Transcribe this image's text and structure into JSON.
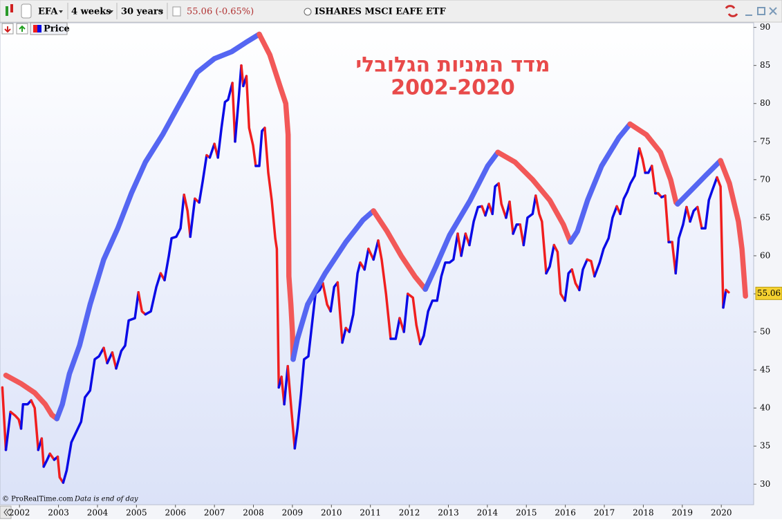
{
  "chart_data": {
    "type": "line",
    "symbol": "EFA",
    "interval": "4 weeks",
    "period": "30 years",
    "quote": "55.06 (-0.65%)",
    "title": "ISHARES MSCI EAFE ETF",
    "annotation": [
      "מדד המניות הגלובלי",
      "2002-2020"
    ],
    "credit": "© ProRealTime.com",
    "note": "Data is end of day",
    "last_value": 55.06,
    "xlim": [
      2001.5,
      2020.83
    ],
    "xticks": [
      2002,
      2003,
      2004,
      2005,
      2006,
      2007,
      2008,
      2009,
      2010,
      2011,
      2012,
      2013,
      2014,
      2015,
      2016,
      2017,
      2018,
      2019,
      2020
    ],
    "ylim": [
      27.3,
      90.6
    ],
    "yticks": [
      30,
      35,
      40,
      45,
      50,
      55,
      60,
      65,
      70,
      75,
      80,
      85,
      90
    ],
    "series": [
      {
        "name": "Price",
        "up_color": "#0a0ae6",
        "down_color": "#f01e1e",
        "x": [
          2001.56,
          2001.65,
          2001.77,
          2001.89,
          2001.98,
          2002.04,
          2002.09,
          2002.21,
          2002.3,
          2002.39,
          2002.48,
          2002.57,
          2002.62,
          2002.71,
          2002.78,
          2002.89,
          2002.98,
          2003.03,
          2003.12,
          2003.21,
          2003.33,
          2003.45,
          2003.58,
          2003.68,
          2003.81,
          2003.93,
          2004.04,
          2004.16,
          2004.25,
          2004.38,
          2004.48,
          2004.61,
          2004.71,
          2004.8,
          2004.96,
          2005.05,
          2005.14,
          2005.23,
          2005.37,
          2005.51,
          2005.62,
          2005.72,
          2005.83,
          2005.9,
          2006.02,
          2006.13,
          2006.22,
          2006.31,
          2006.38,
          2006.5,
          2006.61,
          2006.7,
          2006.8,
          2006.88,
          2007.0,
          2007.09,
          2007.18,
          2007.27,
          2007.35,
          2007.46,
          2007.53,
          2007.62,
          2007.69,
          2007.74,
          2007.82,
          2007.89,
          2007.99,
          2008.06,
          2008.15,
          2008.22,
          2008.29,
          2008.38,
          2008.47,
          2008.56,
          2008.6,
          2008.65,
          2008.72,
          2008.79,
          2008.88,
          2008.97,
          2009.06,
          2009.13,
          2009.22,
          2009.3,
          2009.41,
          2009.48,
          2009.59,
          2009.7,
          2009.78,
          2009.89,
          2009.98,
          2010.07,
          2010.16,
          2010.28,
          2010.37,
          2010.46,
          2010.56,
          2010.67,
          2010.74,
          2010.85,
          2010.95,
          2011.08,
          2011.2,
          2011.29,
          2011.4,
          2011.52,
          2011.65,
          2011.75,
          2011.86,
          2011.96,
          2012.09,
          2012.18,
          2012.28,
          2012.37,
          2012.48,
          2012.59,
          2012.71,
          2012.82,
          2012.92,
          2013.03,
          2013.13,
          2013.24,
          2013.33,
          2013.44,
          2013.54,
          2013.65,
          2013.76,
          2013.86,
          2013.95,
          2014.04,
          2014.13,
          2014.2,
          2014.29,
          2014.36,
          2014.48,
          2014.57,
          2014.66,
          2014.75,
          2014.84,
          2014.93,
          2015.03,
          2015.16,
          2015.24,
          2015.33,
          2015.4,
          2015.51,
          2015.6,
          2015.71,
          2015.8,
          2015.88,
          2015.99,
          2016.08,
          2016.17,
          2016.26,
          2016.36,
          2016.45,
          2016.56,
          2016.66,
          2016.75,
          2016.88,
          2016.98,
          2017.11,
          2017.21,
          2017.32,
          2017.41,
          2017.5,
          2017.59,
          2017.67,
          2017.78,
          2017.9,
          2017.98,
          2018.05,
          2018.13,
          2018.22,
          2018.31,
          2018.38,
          2018.47,
          2018.56,
          2018.65,
          2018.74,
          2018.83,
          2018.91,
          2019.02,
          2019.11,
          2019.2,
          2019.29,
          2019.39,
          2019.5,
          2019.59,
          2019.68,
          2019.77,
          2019.89,
          2019.98,
          2020.05,
          2020.12,
          2020.19
        ],
        "values": [
          42.7,
          34.5,
          39.5,
          39,
          38.5,
          37.3,
          40.5,
          40.5,
          41,
          40,
          34.5,
          36,
          32.3,
          33.2,
          34,
          33.2,
          33.6,
          30.9,
          30.2,
          31.8,
          35.5,
          36.8,
          38.2,
          41.4,
          42.3,
          46.4,
          46.8,
          47.9,
          45.9,
          47.3,
          45.2,
          47.5,
          48.2,
          51.5,
          51.8,
          55.2,
          52.7,
          52.3,
          52.7,
          55.9,
          57.7,
          56.8,
          60,
          62.3,
          62.5,
          63.6,
          68,
          65.9,
          62.5,
          67.5,
          67,
          69.8,
          73.2,
          72.9,
          74.7,
          72.9,
          76.8,
          80.2,
          80.5,
          82.7,
          75,
          80.5,
          85,
          82.3,
          83.6,
          76.8,
          74.5,
          71.8,
          71.8,
          76.4,
          76.8,
          70.9,
          67.3,
          62.3,
          60.9,
          42.7,
          44.1,
          40.5,
          45.5,
          40,
          34.7,
          37.3,
          41.8,
          46.4,
          46.8,
          50,
          55,
          55.5,
          56.4,
          53.6,
          52.7,
          55.9,
          56.5,
          48.6,
          50.5,
          50,
          52.3,
          57.7,
          59.1,
          58.2,
          60.9,
          59.5,
          62,
          59.5,
          55,
          49.1,
          49.1,
          51.8,
          50,
          55,
          54.5,
          50.9,
          48.4,
          49.5,
          52.7,
          54.1,
          54.1,
          57.3,
          59.1,
          59.1,
          59.5,
          62.9,
          60,
          62.9,
          61.4,
          64.5,
          66.4,
          66.5,
          65.3,
          66.8,
          65.5,
          69.1,
          69.5,
          66.8,
          65,
          67.1,
          62.9,
          64.1,
          64.1,
          61.4,
          65,
          65.5,
          67.9,
          65.5,
          64.5,
          57.7,
          58.6,
          61.4,
          60.5,
          55,
          54.1,
          57.7,
          58.2,
          56.4,
          55.5,
          58.2,
          59.5,
          59.3,
          57.3,
          59.1,
          60.9,
          62.3,
          65,
          66.5,
          65.5,
          67.5,
          68.4,
          69.5,
          70.5,
          74.1,
          72.7,
          70.9,
          70.9,
          71.8,
          68.2,
          68.2,
          67.7,
          67.9,
          61.8,
          61.8,
          57.7,
          62.3,
          64.1,
          66.4,
          64.5,
          65.9,
          66.4,
          63.6,
          63.6,
          67.3,
          68.6,
          70.3,
          69.1,
          53.2,
          55.5,
          55.2
        ]
      },
      {
        "up_color": "#5566f2",
        "down_color": "#f25858",
        "x": [
          2001.65,
          2002.04,
          2002.39,
          2002.66,
          2002.83,
          2002.96,
          2003.1,
          2003.28,
          2003.54,
          2003.81,
          2004.16,
          2004.52,
          2004.87,
          2005.23,
          2005.67,
          2006.11,
          2006.56,
          2007.0,
          2007.44,
          2007.8,
          2008.15,
          2008.42,
          2008.68,
          2008.83,
          2008.89,
          2008.91,
          2008.96,
          2009.0,
          2009.02,
          2009.13,
          2009.39,
          2009.84,
          2010.37,
          2010.81,
          2011.08,
          2011.43,
          2011.79,
          2012.14,
          2012.41,
          2012.68,
          2013.03,
          2013.56,
          2014.01,
          2014.27,
          2014.71,
          2015.16,
          2015.6,
          2015.95,
          2016.13,
          2016.31,
          2016.57,
          2016.93,
          2017.37,
          2017.66,
          2018.08,
          2018.44,
          2018.7,
          2018.84,
          2018.88,
          2019.15,
          2019.59,
          2019.98,
          2020.21,
          2020.44,
          2020.53,
          2020.62
        ],
        "values": [
          44.3,
          43.2,
          42,
          40.5,
          39.1,
          38.6,
          40.5,
          44.5,
          48.2,
          53.6,
          59.5,
          63.6,
          68.2,
          72.3,
          75.9,
          80,
          84.1,
          85.9,
          86.8,
          88,
          89.1,
          86.4,
          82.3,
          80,
          75.9,
          57.3,
          53.6,
          50,
          46.4,
          49.1,
          53.6,
          57.7,
          61.8,
          64.7,
          65.9,
          63.2,
          60,
          57.3,
          55.6,
          58.6,
          62.7,
          67.3,
          71.8,
          73.6,
          72.3,
          70,
          67.3,
          64.1,
          61.8,
          63.2,
          67.3,
          71.8,
          75.5,
          77.3,
          75.9,
          73.6,
          70,
          67,
          66.8,
          68.2,
          70.5,
          72.5,
          69.5,
          64.5,
          60.9,
          54.7
        ]
      }
    ]
  }
}
